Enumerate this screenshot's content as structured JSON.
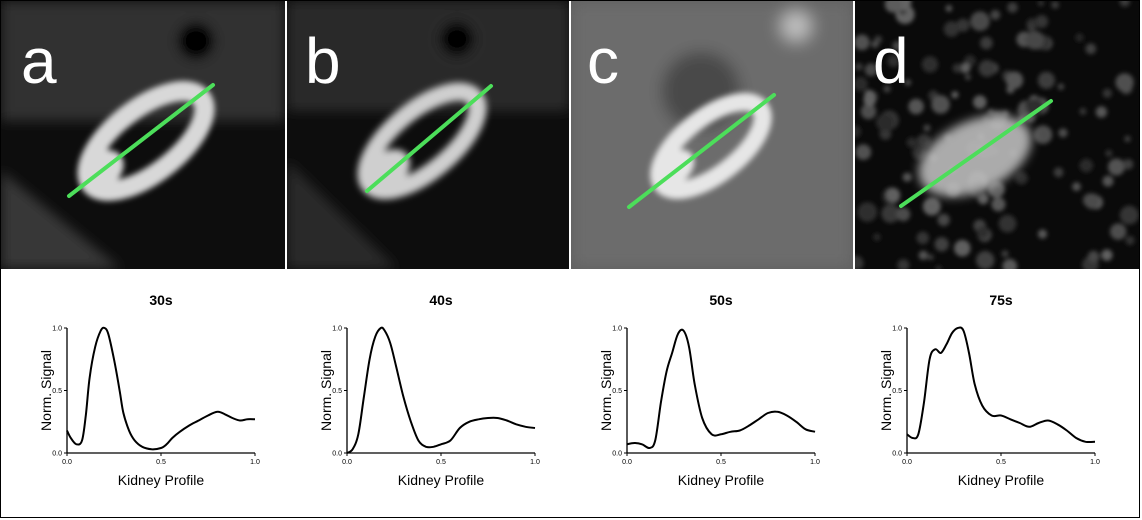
{
  "panels": [
    {
      "letter": "a",
      "background": "#0d0d0d",
      "tissue": "#4a4a4a",
      "cortex": "#d8d8d8",
      "profile_color": "#4cde5a"
    },
    {
      "letter": "b",
      "background": "#0d0d0d",
      "tissue": "#3e3e3e",
      "cortex": "#cfcfcf",
      "profile_color": "#4cde5a"
    },
    {
      "letter": "c",
      "background": "#5e5e5e",
      "tissue": "#7a7a7a",
      "cortex": "#e6e6e6",
      "profile_color": "#4cde5a"
    },
    {
      "letter": "d",
      "background": "#0a0a0a",
      "tissue": "#2a2a2a",
      "cortex": "#bdbdbd",
      "profile_color": "#4cde5a"
    }
  ],
  "chart_data": [
    {
      "type": "line",
      "title": "30s",
      "xlabel": "Kidney Profile",
      "ylabel": "Norm. Signal",
      "xlim": [
        0.0,
        1.0
      ],
      "ylim": [
        0.0,
        1.0
      ],
      "xticks": [
        "0.0",
        "0.5",
        "1.0"
      ],
      "yticks": [
        "0.0",
        "0.5",
        "1.0"
      ],
      "x": [
        0.0,
        0.02,
        0.05,
        0.08,
        0.1,
        0.12,
        0.15,
        0.18,
        0.2,
        0.22,
        0.25,
        0.28,
        0.3,
        0.33,
        0.36,
        0.4,
        0.45,
        0.5,
        0.53,
        0.56,
        0.6,
        0.65,
        0.7,
        0.75,
        0.8,
        0.84,
        0.88,
        0.92,
        0.96,
        1.0
      ],
      "y": [
        0.18,
        0.12,
        0.07,
        0.1,
        0.3,
        0.6,
        0.85,
        0.98,
        1.0,
        0.95,
        0.75,
        0.5,
        0.32,
        0.18,
        0.1,
        0.05,
        0.03,
        0.04,
        0.07,
        0.12,
        0.17,
        0.22,
        0.26,
        0.3,
        0.33,
        0.31,
        0.28,
        0.26,
        0.27,
        0.27
      ]
    },
    {
      "type": "line",
      "title": "40s",
      "xlabel": "Kidney Profile",
      "ylabel": "Norm. Signal",
      "xlim": [
        0.0,
        1.0
      ],
      "ylim": [
        0.0,
        1.0
      ],
      "xticks": [
        "0.0",
        "0.5",
        "1.0"
      ],
      "yticks": [
        "0.0",
        "0.5",
        "1.0"
      ],
      "x": [
        0.0,
        0.03,
        0.06,
        0.09,
        0.12,
        0.15,
        0.18,
        0.2,
        0.23,
        0.26,
        0.3,
        0.34,
        0.38,
        0.42,
        0.46,
        0.5,
        0.55,
        0.6,
        0.65,
        0.7,
        0.75,
        0.8,
        0.85,
        0.9,
        0.95,
        1.0
      ],
      "y": [
        0.0,
        0.03,
        0.15,
        0.45,
        0.75,
        0.93,
        1.0,
        0.98,
        0.88,
        0.7,
        0.45,
        0.25,
        0.1,
        0.05,
        0.05,
        0.07,
        0.1,
        0.2,
        0.25,
        0.27,
        0.28,
        0.28,
        0.26,
        0.23,
        0.21,
        0.2
      ]
    },
    {
      "type": "line",
      "title": "50s",
      "xlabel": "Kidney Profile",
      "ylabel": "Norm. Signal",
      "xlim": [
        0.0,
        1.0
      ],
      "ylim": [
        0.0,
        1.0
      ],
      "xticks": [
        "0.0",
        "0.5",
        "1.0"
      ],
      "yticks": [
        "0.0",
        "0.5",
        "1.0"
      ],
      "x": [
        0.0,
        0.04,
        0.08,
        0.12,
        0.15,
        0.18,
        0.21,
        0.24,
        0.27,
        0.3,
        0.33,
        0.36,
        0.4,
        0.45,
        0.5,
        0.55,
        0.6,
        0.65,
        0.7,
        0.75,
        0.8,
        0.85,
        0.9,
        0.95,
        1.0
      ],
      "y": [
        0.07,
        0.08,
        0.07,
        0.04,
        0.1,
        0.4,
        0.65,
        0.8,
        0.95,
        0.98,
        0.85,
        0.55,
        0.28,
        0.15,
        0.15,
        0.17,
        0.18,
        0.22,
        0.27,
        0.32,
        0.33,
        0.3,
        0.25,
        0.19,
        0.17
      ]
    },
    {
      "type": "line",
      "title": "75s",
      "xlabel": "Kidney Profile",
      "ylabel": "Norm. Signal",
      "xlim": [
        0.0,
        1.0
      ],
      "ylim": [
        0.0,
        1.0
      ],
      "xticks": [
        "0.0",
        "0.5",
        "1.0"
      ],
      "yticks": [
        "0.0",
        "0.5",
        "1.0"
      ],
      "x": [
        0.0,
        0.03,
        0.06,
        0.09,
        0.12,
        0.15,
        0.18,
        0.21,
        0.24,
        0.27,
        0.3,
        0.33,
        0.36,
        0.4,
        0.45,
        0.5,
        0.55,
        0.6,
        0.65,
        0.7,
        0.75,
        0.8,
        0.85,
        0.9,
        0.95,
        1.0
      ],
      "y": [
        0.15,
        0.12,
        0.15,
        0.4,
        0.75,
        0.83,
        0.8,
        0.87,
        0.96,
        1.0,
        0.98,
        0.8,
        0.55,
        0.38,
        0.3,
        0.3,
        0.27,
        0.24,
        0.21,
        0.24,
        0.26,
        0.23,
        0.18,
        0.12,
        0.09,
        0.09
      ]
    }
  ]
}
